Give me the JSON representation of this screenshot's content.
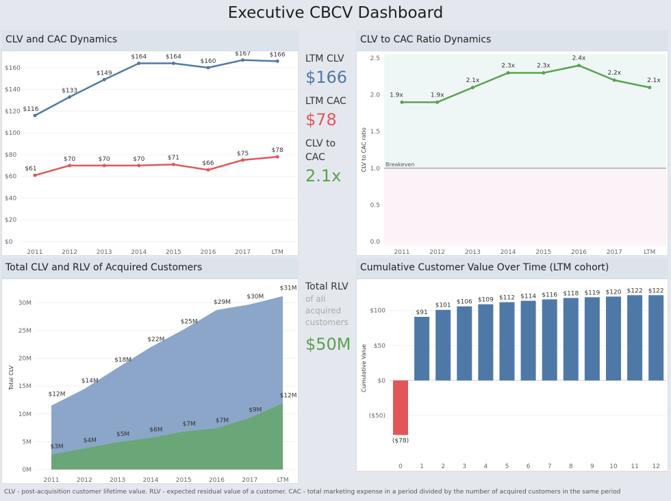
{
  "title": "Executive CBCV Dashboard",
  "panels": {
    "clv_cac": "CLV and CAC Dynamics",
    "ratio": "CLV to CAC Ratio Dynamics",
    "total": "Total CLV and RLV of Acquired Customers",
    "cumulative": "Cumulative Customer Value Over Time (LTM cohort)"
  },
  "kpis": {
    "ltm_clv_label": "LTM CLV",
    "ltm_clv_value": "$166",
    "ltm_cac_label": "LTM CAC",
    "ltm_cac_value": "$78",
    "ratio_label_1": "CLV to",
    "ratio_label_2": "CAC",
    "ratio_value": "2.1x",
    "rlv_label": "Total RLV",
    "rlv_sub_1": "of all",
    "rlv_sub_2": "acquired",
    "rlv_sub_3": "customers",
    "rlv_value": "$50M"
  },
  "colors": {
    "clv": "#4e79a7",
    "cac": "#e15759",
    "ratio": "#59a14f",
    "area_clv": "#8ba6c8",
    "area_rlv": "#6aa677"
  },
  "footer": "CLV - post-acquisition customer lifetime value. RLV - expected residual value of a customer. CAC - total marketing expense in a period divided by the number of acquired customers in the same period",
  "chart_data": [
    {
      "type": "line",
      "title": "CLV and CAC Dynamics",
      "categories": [
        "2011",
        "2012",
        "2013",
        "2014",
        "2015",
        "2016",
        "2017",
        "LTM"
      ],
      "series": [
        {
          "values": [
            116,
            133,
            149,
            164,
            164,
            160,
            167,
            166
          ],
          "labels": [
            "$116",
            "$133",
            "$149",
            "$164",
            "$164",
            "$160",
            "$167",
            "$166"
          ]
        },
        {
          "values": [
            61,
            70,
            70,
            70,
            71,
            66,
            75,
            78
          ],
          "labels": [
            "$61",
            "$70",
            "$70",
            "$70",
            "$71",
            "$66",
            "$75",
            "$78"
          ]
        }
      ],
      "yticks": [
        "$0",
        "$20",
        "$40",
        "$60",
        "$80",
        "$100",
        "$120",
        "$140",
        "$160"
      ],
      "ylim": [
        0,
        170
      ]
    },
    {
      "type": "line",
      "title": "CLV to CAC Ratio Dynamics",
      "categories": [
        "2011",
        "2012",
        "2013",
        "2014",
        "2015",
        "2016",
        "2017",
        "LTM"
      ],
      "series": [
        {
          "values": [
            1.9,
            1.9,
            2.1,
            2.3,
            2.3,
            2.4,
            2.2,
            2.1
          ],
          "labels": [
            "1.9x",
            "1.9x",
            "2.1x",
            "2.3x",
            "2.3x",
            "2.4x",
            "2.2x",
            "2.1x"
          ]
        }
      ],
      "ylabel": "CLV to CAC ratio",
      "yticks": [
        "0.0",
        "0.5",
        "1.0",
        "1.5",
        "2.0",
        "2.5"
      ],
      "ylim": [
        0,
        2.5
      ],
      "reference_line": {
        "value": 1.0,
        "label": "Breakeven"
      }
    },
    {
      "type": "area",
      "title": "Total CLV and RLV of Acquired Customers",
      "categories": [
        "2011",
        "2012",
        "2013",
        "2014",
        "2015",
        "2016",
        "2017",
        "LTM"
      ],
      "series": [
        {
          "values": [
            11.5,
            14.5,
            18.3,
            22,
            25.2,
            28.7,
            29.7,
            31.2
          ],
          "labels": [
            "$12M",
            "$14M",
            "$18M",
            "$22M",
            "$25M",
            "$29M",
            "$30M",
            "$31M"
          ]
        },
        {
          "values": [
            2.7,
            3.8,
            4.9,
            5.7,
            6.8,
            7.4,
            9.3,
            11.9
          ],
          "labels": [
            "$3M",
            "$4M",
            "$5M",
            "$6M",
            "$7M",
            "$7M",
            "$9M",
            "$12M"
          ]
        }
      ],
      "ylabel": "Total CLV",
      "yticks": [
        "0M",
        "5M",
        "10M",
        "15M",
        "20M",
        "25M",
        "30M"
      ],
      "ylim": [
        0,
        33
      ]
    },
    {
      "type": "bar",
      "title": "Cumulative Customer Value Over Time (LTM cohort)",
      "categories": [
        "0",
        "1",
        "2",
        "3",
        "4",
        "5",
        "6",
        "7",
        "8",
        "9",
        "10",
        "11",
        "12"
      ],
      "values": [
        -78,
        91,
        101,
        106,
        109,
        112,
        114,
        116,
        118,
        119,
        120,
        122,
        122
      ],
      "labels": [
        "($78)",
        "$91",
        "$101",
        "$106",
        "$109",
        "$112",
        "$114",
        "$116",
        "$118",
        "$119",
        "$120",
        "$122",
        "$122"
      ],
      "xlabel": "Months since acquisition",
      "ylabel": "Cumulative Value",
      "yticks": [
        "($50)",
        "$0",
        "$50",
        "$100"
      ],
      "ylim": [
        -100,
        135
      ]
    }
  ]
}
